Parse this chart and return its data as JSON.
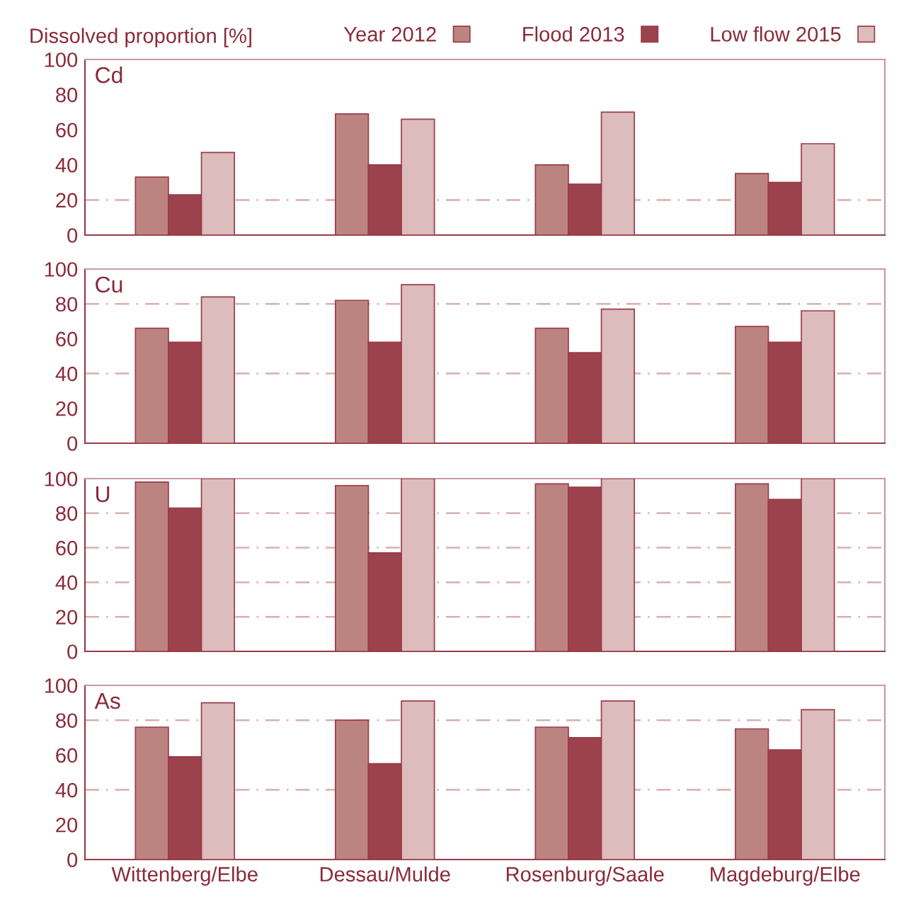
{
  "chart_data": [
    {
      "type": "bar",
      "title": "Cd",
      "ylabel": "Dissolved proportion [%]",
      "categories": [
        null,
        null,
        null,
        null
      ],
      "ylim": [
        0,
        100
      ],
      "yticks": [
        0,
        20,
        40,
        60,
        80,
        100
      ],
      "tick_labels": "y",
      "legend": "top right",
      "series": [
        {
          "name": "Year 2012",
          "color": "#bc8480",
          "values": [
            33,
            69,
            40,
            35
          ]
        },
        {
          "name": "Flood 2013",
          "color": "#9b424c",
          "values": [
            23,
            40,
            29,
            30
          ]
        },
        {
          "name": "Low flow 2015",
          "color": "#dcbcbc",
          "values": [
            47,
            66,
            70,
            52
          ]
        }
      ],
      "ref_lines": [
        {
          "axis": "y",
          "value": 20,
          "line_style": "dashed",
          "color": "#d8b0b0"
        }
      ]
    },
    {
      "type": "bar",
      "title": "Cu",
      "categories": [
        null,
        null,
        null,
        null
      ],
      "ylim": [
        0,
        100
      ],
      "yticks": [
        0,
        20,
        40,
        60,
        80,
        100
      ],
      "tick_labels": "y",
      "series": [
        {
          "color": "#bc8480",
          "values": [
            66,
            82,
            66,
            67
          ]
        },
        {
          "color": "#9b424c",
          "values": [
            58,
            58,
            52,
            58
          ]
        },
        {
          "color": "#dcbcbc",
          "values": [
            84,
            91,
            77,
            76
          ]
        }
      ],
      "ref_lines": [
        {
          "axis": "y",
          "value": 40,
          "line_style": "dashed",
          "color": "#d8b0b0"
        },
        {
          "axis": "y",
          "value": 80,
          "line_style": "dashed",
          "color": "#d8b0b0"
        }
      ]
    },
    {
      "type": "bar",
      "title": "U",
      "categories": [
        null,
        null,
        null,
        null
      ],
      "ylim": [
        0,
        100
      ],
      "yticks": [
        0,
        20,
        40,
        60,
        80,
        100
      ],
      "tick_labels": "y",
      "series": [
        {
          "color": "#bc8480",
          "values": [
            98,
            96,
            97,
            97
          ]
        },
        {
          "color": "#9b424c",
          "values": [
            83,
            57,
            95,
            88
          ]
        },
        {
          "color": "#dcbcbc",
          "values": [
            100,
            100,
            100,
            100
          ]
        }
      ],
      "ref_lines": [
        {
          "axis": "y",
          "value": 20,
          "line_style": "dashed",
          "color": "#d8b0b0"
        },
        {
          "axis": "y",
          "value": 40,
          "line_style": "dashed",
          "color": "#d8b0b0"
        },
        {
          "axis": "y",
          "value": 60,
          "line_style": "dashed",
          "color": "#d8b0b0"
        },
        {
          "axis": "y",
          "value": 80,
          "line_style": "dashed",
          "color": "#d8b0b0"
        }
      ]
    },
    {
      "type": "bar",
      "title": "As",
      "categories": [
        "Wittenberg/Elbe",
        "Dessau/Mulde",
        "Rosenburg/Saale",
        "Magdeburg/Elbe"
      ],
      "ylim": [
        0,
        100
      ],
      "yticks": [
        0,
        20,
        40,
        60,
        80,
        100
      ],
      "series": [
        {
          "color": "#bc8480",
          "values": [
            76,
            80,
            76,
            75
          ]
        },
        {
          "color": "#9b424c",
          "values": [
            59,
            55,
            70,
            63
          ]
        },
        {
          "color": "#dcbcbc",
          "values": [
            90,
            91,
            91,
            86
          ]
        }
      ],
      "ref_lines": [
        {
          "axis": "y",
          "value": 40,
          "line_style": "dashed",
          "color": "#d8b0b0"
        },
        {
          "axis": "y",
          "value": 80,
          "line_style": "dashed",
          "color": "#d8b0b0"
        }
      ]
    }
  ]
}
